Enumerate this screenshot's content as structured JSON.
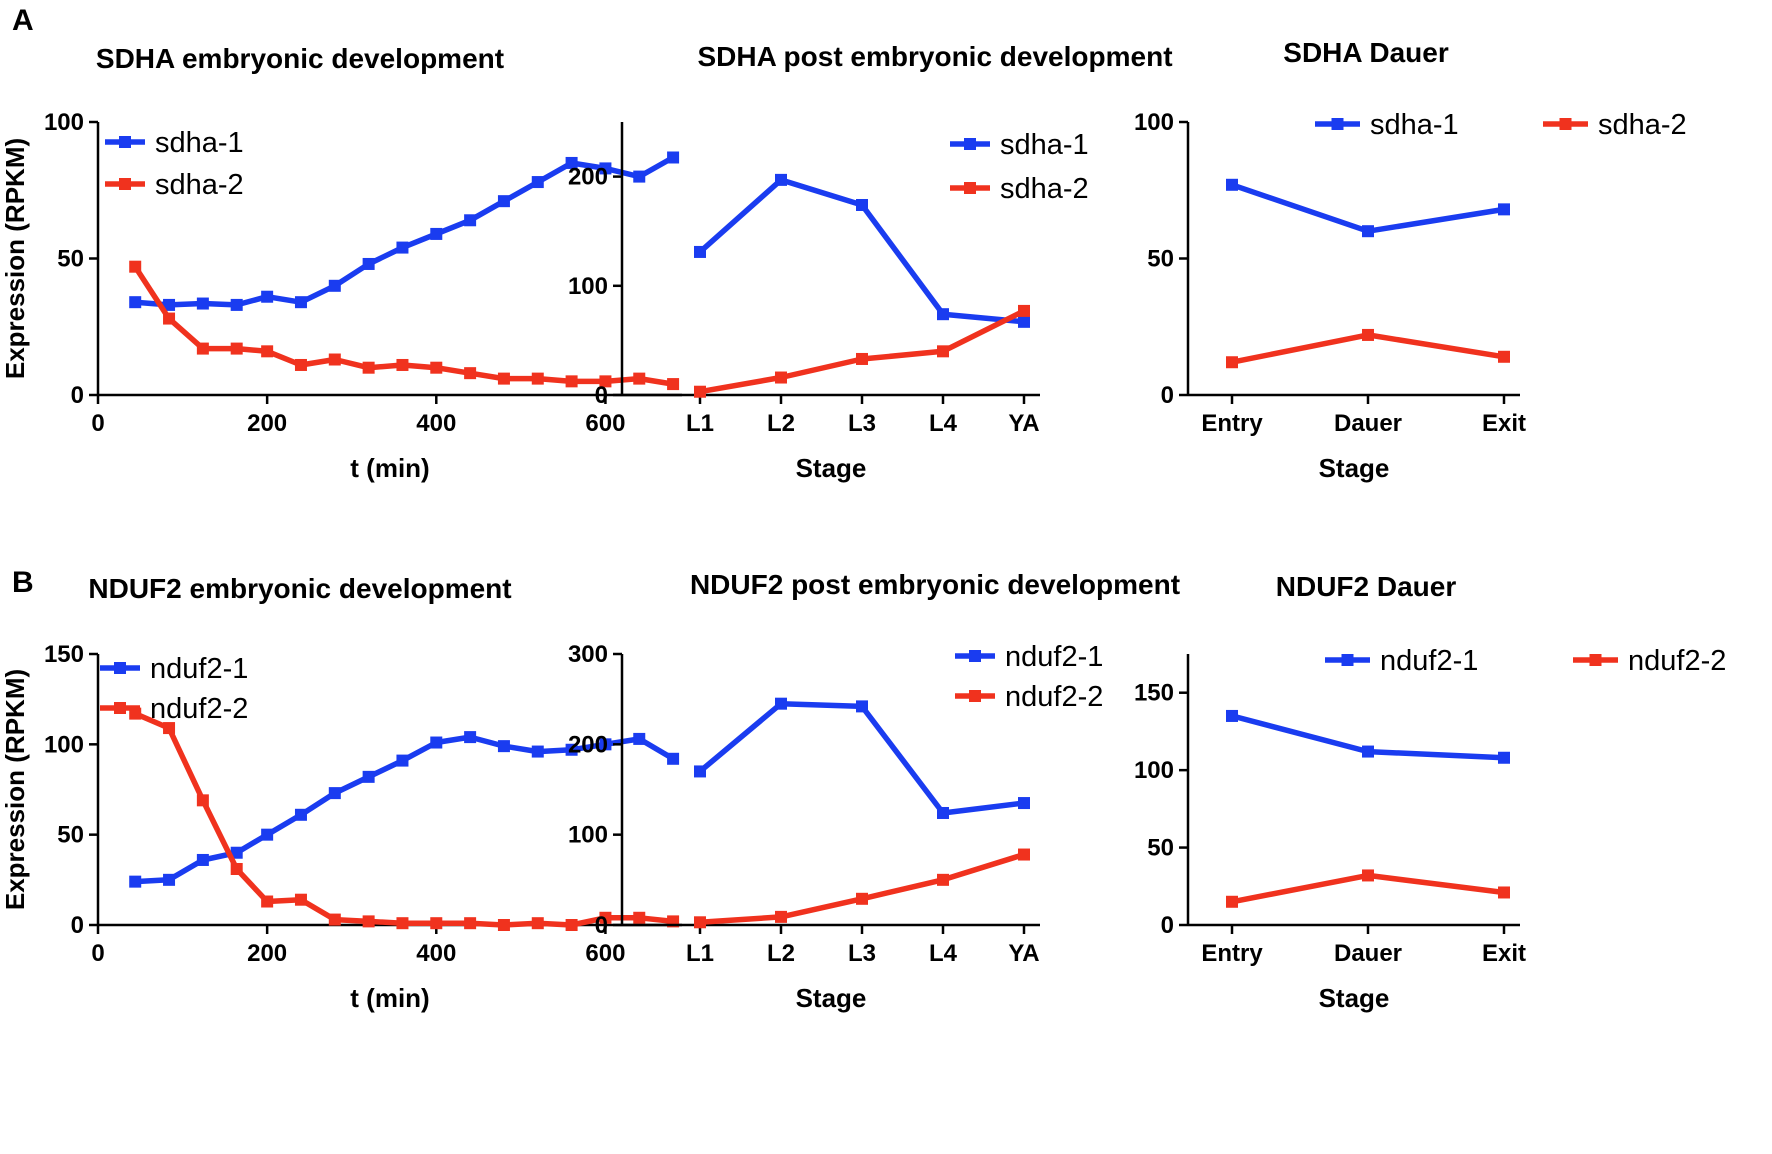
{
  "colors": {
    "series1": "#1a3cf0",
    "series2": "#f0321e",
    "axis": "#000000"
  },
  "panels": [
    {
      "label": "A"
    },
    {
      "label": "B"
    }
  ],
  "chart_data": [
    {
      "type": "line",
      "panel": "A",
      "x_kind": "numeric",
      "title": "SDHA embryonic development",
      "xlabel": "t (min)",
      "ylabel": "Expression (RPKM)",
      "xlim": [
        0,
        700
      ],
      "ylim": [
        0,
        100
      ],
      "xticks": [
        0,
        200,
        400,
        600
      ],
      "yticks": [
        0,
        50,
        100
      ],
      "legend": "top-left-stacked",
      "x": [
        44,
        84,
        124,
        164,
        200,
        240,
        280,
        320,
        360,
        400,
        440,
        480,
        520,
        560,
        600,
        640,
        680
      ],
      "series": [
        {
          "name": "sdha-1",
          "values": [
            34,
            33,
            33.5,
            33,
            36,
            34,
            40,
            48,
            54,
            59,
            64,
            71,
            78,
            85,
            83,
            80,
            87
          ]
        },
        {
          "name": "sdha-2",
          "values": [
            47,
            28,
            17,
            17,
            16,
            11,
            13,
            10,
            11,
            10,
            8,
            6,
            6,
            5,
            5,
            6,
            4
          ]
        }
      ]
    },
    {
      "type": "line",
      "panel": "A",
      "x_kind": "categorical",
      "title": "SDHA post embryonic development",
      "xlabel": "Stage",
      "ylabel": "",
      "ylim": [
        0,
        250
      ],
      "yticks": [
        0,
        100,
        200
      ],
      "legend": "top-right-stacked",
      "categories": [
        "L1",
        "L2",
        "L3",
        "L4",
        "YA"
      ],
      "series": [
        {
          "name": "sdha-1",
          "values": [
            131,
            197,
            174,
            74,
            67
          ]
        },
        {
          "name": "sdha-2",
          "values": [
            3,
            16,
            33,
            40,
            77
          ]
        }
      ]
    },
    {
      "type": "line",
      "panel": "A",
      "x_kind": "categorical",
      "title": "SDHA Dauer",
      "xlabel": "Stage",
      "ylabel": "",
      "ylim": [
        0,
        100
      ],
      "yticks": [
        0,
        50,
        100
      ],
      "legend": "top-inline",
      "categories": [
        "Entry",
        "Dauer",
        "Exit"
      ],
      "series": [
        {
          "name": "sdha-1",
          "values": [
            77,
            60,
            68
          ]
        },
        {
          "name": "sdha-2",
          "values": [
            12,
            22,
            14
          ]
        }
      ]
    },
    {
      "type": "line",
      "panel": "B",
      "x_kind": "numeric",
      "title": "NDUF2 embryonic development",
      "xlabel": "t (min)",
      "ylabel": "Expression (RPKM)",
      "xlim": [
        0,
        700
      ],
      "ylim": [
        0,
        150
      ],
      "xticks": [
        0,
        200,
        400,
        600
      ],
      "yticks": [
        0,
        50,
        100,
        150
      ],
      "legend": "top-left-stacked",
      "x": [
        44,
        84,
        124,
        164,
        200,
        240,
        280,
        320,
        360,
        400,
        440,
        480,
        520,
        560,
        600,
        640,
        680
      ],
      "series": [
        {
          "name": "nduf2-1",
          "values": [
            24,
            25,
            36,
            40,
            50,
            61,
            73,
            82,
            91,
            101,
            104,
            99,
            96,
            97,
            100,
            103,
            92
          ]
        },
        {
          "name": "nduf2-2",
          "values": [
            117,
            109,
            69,
            31,
            13,
            14,
            3,
            2,
            1,
            1,
            1,
            0,
            1,
            0,
            4,
            4,
            2
          ]
        }
      ]
    },
    {
      "type": "line",
      "panel": "B",
      "x_kind": "categorical",
      "title": "NDUF2 post embryonic development",
      "xlabel": "Stage",
      "ylabel": "",
      "ylim": [
        0,
        300
      ],
      "yticks": [
        0,
        100,
        200,
        300
      ],
      "legend": "top-right-stacked",
      "categories": [
        "L1",
        "L2",
        "L3",
        "L4",
        "YA"
      ],
      "series": [
        {
          "name": "nduf2-1",
          "values": [
            170,
            245,
            242,
            124,
            135
          ]
        },
        {
          "name": "nduf2-2",
          "values": [
            3,
            9,
            29,
            50,
            78
          ]
        }
      ]
    },
    {
      "type": "line",
      "panel": "B",
      "x_kind": "categorical",
      "title": "NDUF2 Dauer",
      "xlabel": "Stage",
      "ylabel": "",
      "ylim": [
        0,
        175
      ],
      "yticks": [
        0,
        50,
        100,
        150
      ],
      "legend": "top-inline",
      "categories": [
        "Entry",
        "Dauer",
        "Exit"
      ],
      "series": [
        {
          "name": "nduf2-1",
          "values": [
            135,
            112,
            108
          ]
        },
        {
          "name": "nduf2-2",
          "values": [
            15,
            32,
            21
          ]
        }
      ]
    }
  ]
}
